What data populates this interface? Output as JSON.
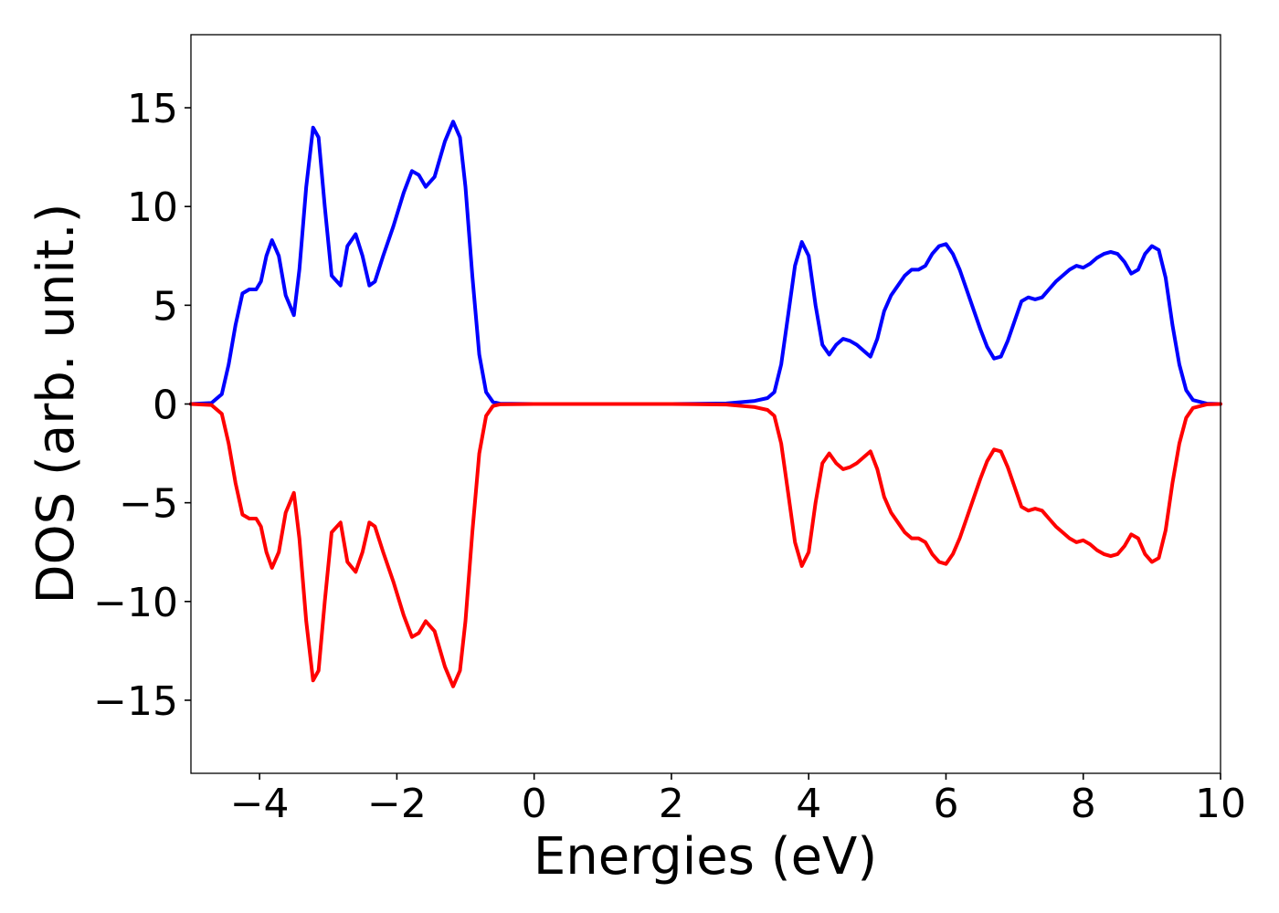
{
  "chart_data": {
    "type": "line",
    "title": "",
    "xlabel": "Energies (eV)",
    "ylabel": "DOS (arb. unit.)",
    "xlim": [
      -5,
      10
    ],
    "ylim": [
      -18.7,
      18.7
    ],
    "xticks": [
      -4,
      -2,
      0,
      2,
      4,
      6,
      8,
      10
    ],
    "xtick_labels": [
      "−4",
      "−2",
      "0",
      "2",
      "4",
      "6",
      "8",
      "10"
    ],
    "yticks": [
      -15,
      -10,
      -5,
      0,
      5,
      10,
      15
    ],
    "ytick_labels": [
      "−15",
      "−10",
      "−5",
      "0",
      "5",
      "10",
      "15"
    ],
    "grid": false,
    "legend": "none",
    "series": [
      {
        "color": "#0000ff",
        "x": [
          -5.0,
          -4.7,
          -4.55,
          -4.45,
          -4.35,
          -4.25,
          -4.15,
          -4.05,
          -3.98,
          -3.9,
          -3.82,
          -3.72,
          -3.62,
          -3.5,
          -3.42,
          -3.32,
          -3.22,
          -3.14,
          -3.05,
          -2.95,
          -2.82,
          -2.72,
          -2.6,
          -2.5,
          -2.4,
          -2.32,
          -2.2,
          -2.05,
          -1.9,
          -1.78,
          -1.68,
          -1.58,
          -1.45,
          -1.3,
          -1.18,
          -1.08,
          -1.0,
          -0.9,
          -0.8,
          -0.7,
          -0.6,
          -0.5,
          0.0,
          1.0,
          2.0,
          2.8,
          3.2,
          3.4,
          3.5,
          3.6,
          3.7,
          3.8,
          3.9,
          4.0,
          4.1,
          4.2,
          4.3,
          4.4,
          4.5,
          4.6,
          4.7,
          4.8,
          4.9,
          5.0,
          5.1,
          5.2,
          5.3,
          5.4,
          5.5,
          5.6,
          5.7,
          5.8,
          5.9,
          6.0,
          6.1,
          6.2,
          6.3,
          6.4,
          6.5,
          6.6,
          6.7,
          6.8,
          6.9,
          7.0,
          7.1,
          7.2,
          7.3,
          7.4,
          7.5,
          7.6,
          7.7,
          7.8,
          7.9,
          8.0,
          8.1,
          8.2,
          8.3,
          8.4,
          8.5,
          8.6,
          8.7,
          8.8,
          8.9,
          9.0,
          9.1,
          9.2,
          9.3,
          9.4,
          9.5,
          9.6,
          9.8,
          10.0
        ],
        "y": [
          0.0,
          0.05,
          0.5,
          2.0,
          4.0,
          5.6,
          5.8,
          5.8,
          6.2,
          7.5,
          8.3,
          7.5,
          5.5,
          4.5,
          6.8,
          11.0,
          14.0,
          13.5,
          10.0,
          6.5,
          6.0,
          8.0,
          8.6,
          7.5,
          6.0,
          6.2,
          7.5,
          9.0,
          10.7,
          11.8,
          11.6,
          11.0,
          11.5,
          13.3,
          14.3,
          13.5,
          11.0,
          6.5,
          2.5,
          0.6,
          0.1,
          0.02,
          0.0,
          0.0,
          0.0,
          0.03,
          0.15,
          0.3,
          0.6,
          2.0,
          4.5,
          7.0,
          8.2,
          7.5,
          5.0,
          3.0,
          2.5,
          3.0,
          3.3,
          3.2,
          3.0,
          2.7,
          2.4,
          3.3,
          4.7,
          5.5,
          6.0,
          6.5,
          6.8,
          6.8,
          7.0,
          7.6,
          8.0,
          8.1,
          7.6,
          6.8,
          5.8,
          4.8,
          3.8,
          2.9,
          2.3,
          2.4,
          3.2,
          4.2,
          5.2,
          5.4,
          5.3,
          5.4,
          5.8,
          6.2,
          6.5,
          6.8,
          7.0,
          6.9,
          7.1,
          7.4,
          7.6,
          7.7,
          7.6,
          7.2,
          6.6,
          6.8,
          7.6,
          8.0,
          7.8,
          6.4,
          4.0,
          2.0,
          0.7,
          0.2,
          0.02,
          0.0
        ]
      },
      {
        "color": "#ff0000",
        "x": [
          -5.0,
          -4.7,
          -4.55,
          -4.45,
          -4.35,
          -4.25,
          -4.15,
          -4.05,
          -3.98,
          -3.9,
          -3.82,
          -3.72,
          -3.62,
          -3.5,
          -3.42,
          -3.32,
          -3.22,
          -3.14,
          -3.05,
          -2.95,
          -2.82,
          -2.72,
          -2.6,
          -2.5,
          -2.4,
          -2.32,
          -2.2,
          -2.05,
          -1.9,
          -1.78,
          -1.68,
          -1.58,
          -1.45,
          -1.3,
          -1.18,
          -1.08,
          -1.0,
          -0.9,
          -0.8,
          -0.7,
          -0.6,
          -0.5,
          0.0,
          1.0,
          2.0,
          2.8,
          3.2,
          3.4,
          3.5,
          3.6,
          3.7,
          3.8,
          3.9,
          4.0,
          4.1,
          4.2,
          4.3,
          4.4,
          4.5,
          4.6,
          4.7,
          4.8,
          4.9,
          5.0,
          5.1,
          5.2,
          5.3,
          5.4,
          5.5,
          5.6,
          5.7,
          5.8,
          5.9,
          6.0,
          6.1,
          6.2,
          6.3,
          6.4,
          6.5,
          6.6,
          6.7,
          6.8,
          6.9,
          7.0,
          7.1,
          7.2,
          7.3,
          7.4,
          7.5,
          7.6,
          7.7,
          7.8,
          7.9,
          8.0,
          8.1,
          8.2,
          8.3,
          8.4,
          8.5,
          8.6,
          8.7,
          8.8,
          8.9,
          9.0,
          9.1,
          9.2,
          9.3,
          9.4,
          9.5,
          9.6,
          9.8,
          10.0
        ],
        "y": [
          0.0,
          -0.05,
          -0.5,
          -2.0,
          -4.0,
          -5.6,
          -5.8,
          -5.8,
          -6.2,
          -7.5,
          -8.3,
          -7.5,
          -5.5,
          -4.5,
          -6.8,
          -11.0,
          -14.0,
          -13.5,
          -10.0,
          -6.5,
          -6.0,
          -8.0,
          -8.5,
          -7.5,
          -6.0,
          -6.2,
          -7.5,
          -9.0,
          -10.7,
          -11.8,
          -11.6,
          -11.0,
          -11.5,
          -13.3,
          -14.3,
          -13.5,
          -11.0,
          -6.5,
          -2.5,
          -0.6,
          -0.1,
          -0.02,
          0.0,
          0.0,
          0.0,
          -0.03,
          -0.15,
          -0.3,
          -0.6,
          -2.0,
          -4.5,
          -7.0,
          -8.2,
          -7.5,
          -5.0,
          -3.0,
          -2.5,
          -3.0,
          -3.3,
          -3.2,
          -3.0,
          -2.7,
          -2.4,
          -3.3,
          -4.7,
          -5.5,
          -6.0,
          -6.5,
          -6.8,
          -6.8,
          -7.0,
          -7.6,
          -8.0,
          -8.1,
          -7.6,
          -6.8,
          -5.8,
          -4.8,
          -3.8,
          -2.9,
          -2.3,
          -2.4,
          -3.2,
          -4.2,
          -5.2,
          -5.4,
          -5.3,
          -5.4,
          -5.8,
          -6.2,
          -6.5,
          -6.8,
          -7.0,
          -6.9,
          -7.1,
          -7.4,
          -7.6,
          -7.7,
          -7.6,
          -7.2,
          -6.6,
          -6.8,
          -7.6,
          -8.0,
          -7.8,
          -6.4,
          -4.0,
          -2.0,
          -0.7,
          -0.2,
          -0.02,
          0.0
        ]
      }
    ]
  }
}
